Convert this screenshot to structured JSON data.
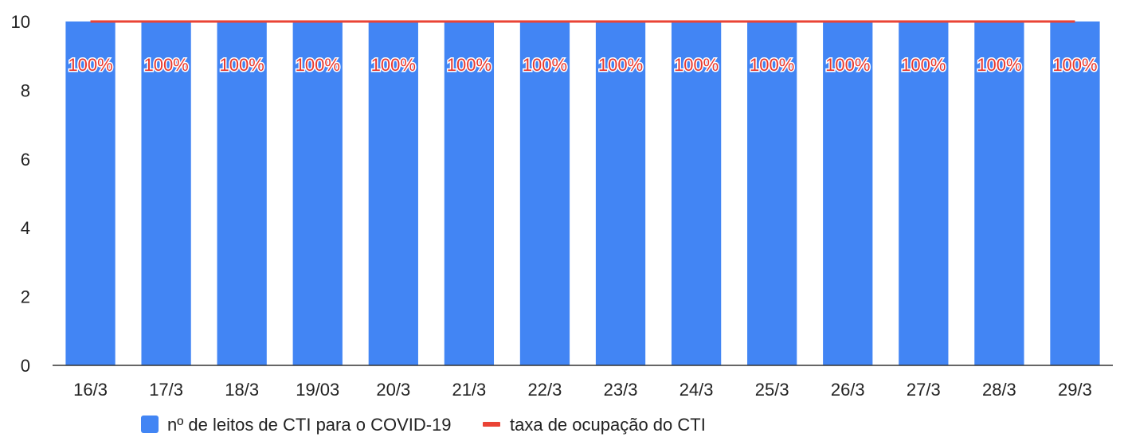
{
  "chart_data": {
    "type": "bar",
    "categories": [
      "16/3",
      "17/3",
      "18/3",
      "19/03",
      "20/3",
      "21/3",
      "22/3",
      "23/3",
      "24/3",
      "25/3",
      "26/3",
      "27/3",
      "28/3",
      "29/3"
    ],
    "series": [
      {
        "name": "nº de leitos de CTI para o COVID-19",
        "type": "bar",
        "axis": "left",
        "color": "#4285f4",
        "values": [
          10,
          10,
          10,
          10,
          10,
          10,
          10,
          10,
          10,
          10,
          10,
          10,
          10,
          10
        ],
        "data_labels": [
          "100%",
          "100%",
          "100%",
          "100%",
          "100%",
          "100%",
          "100%",
          "100%",
          "100%",
          "100%",
          "100%",
          "100%",
          "100%",
          "100%"
        ]
      },
      {
        "name": "taxa de ocupação do CTI",
        "type": "line",
        "axis": "right",
        "color": "#ea4335",
        "values": [
          1,
          1,
          1,
          1,
          1,
          1,
          1,
          1,
          1,
          1,
          1,
          1,
          1,
          1
        ],
        "ylim": [
          0,
          1
        ]
      }
    ],
    "y_ticks": [
      "0",
      "2",
      "4",
      "6",
      "8",
      "10"
    ],
    "ylim": [
      0,
      10
    ],
    "title": "",
    "xlabel": "",
    "ylabel": "",
    "grid": false,
    "legend_position": "bottom"
  }
}
